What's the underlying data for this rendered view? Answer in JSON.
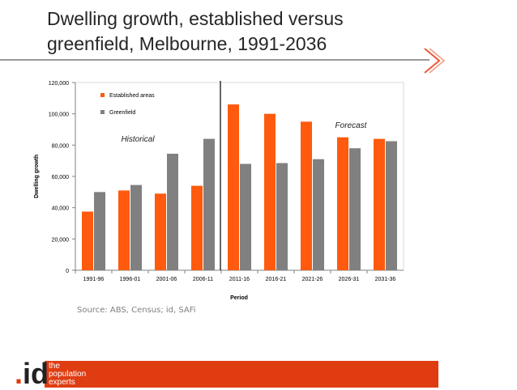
{
  "slide": {
    "title_line1": "Dwelling growth, established versus",
    "title_line2": "greenfield, Melbourne, 1991-2036",
    "source": "Source: ABS, Census; id, SAFi",
    "footer": {
      "brand_dot": ".",
      "brand_text": "id",
      "tagline": [
        "the",
        "population",
        "experts"
      ],
      "accent_color": "#e03c12"
    }
  },
  "chart_data": {
    "type": "bar",
    "title": "",
    "xlabel": "Period",
    "ylabel": "Dwelling growth",
    "ylim": [
      0,
      120000
    ],
    "yticks": [
      "0",
      "20,000",
      "40,000",
      "60,000",
      "80,000",
      "100,000",
      "120,000"
    ],
    "categories": [
      "1991-96",
      "1996-01",
      "2001-06",
      "2006-11",
      "2011-16",
      "2016-21",
      "2021-26",
      "2026-31",
      "2031-36"
    ],
    "series": [
      {
        "name": "Established areas",
        "color": "#ff5a0e",
        "values": [
          37500,
          51000,
          49000,
          54000,
          106000,
          100000,
          95000,
          85000,
          84000
        ]
      },
      {
        "name": "Greenfield",
        "color": "#808080",
        "values": [
          50000,
          54500,
          74500,
          84000,
          68000,
          68500,
          71000,
          78000,
          82500
        ]
      }
    ],
    "annotations": {
      "historical": "Historical",
      "forecast": "Forecast"
    },
    "divider_after_category": "2006-11",
    "grid": false,
    "legend_position": "top-left"
  }
}
